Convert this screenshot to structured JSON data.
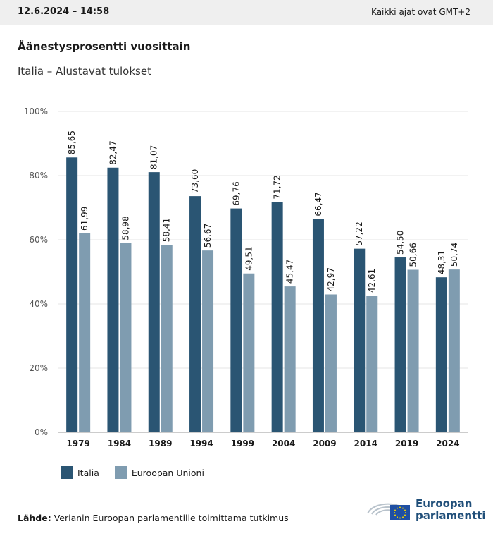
{
  "header": {
    "datetime": "12.6.2024 – 14:58",
    "timezone_note": "Kaikki ajat ovat GMT+2"
  },
  "title": "Äänestysprosentti vuosittain",
  "subtitle": "Italia – Alustavat tulokset",
  "colors": {
    "italia": "#2a5573",
    "eu": "#7f9cb0",
    "grid": "#e4e4e4"
  },
  "chart_data": {
    "type": "bar",
    "categories": [
      "1979",
      "1984",
      "1989",
      "1994",
      "1999",
      "2004",
      "2009",
      "2014",
      "2019",
      "2024"
    ],
    "series": [
      {
        "name": "Italia",
        "values": [
          85.65,
          82.47,
          81.07,
          73.6,
          69.76,
          71.72,
          66.47,
          57.22,
          54.5,
          48.31
        ],
        "labels": [
          "85,65",
          "82,47",
          "81,07",
          "73,60",
          "69,76",
          "71,72",
          "66,47",
          "57,22",
          "54,50",
          "48,31"
        ]
      },
      {
        "name": "Euroopan Unioni",
        "values": [
          61.99,
          58.98,
          58.41,
          56.67,
          49.51,
          45.47,
          42.97,
          42.61,
          50.66,
          50.74
        ],
        "labels": [
          "61,99",
          "58,98",
          "58,41",
          "56,67",
          "49,51",
          "45,47",
          "42,97",
          "42,61",
          "50,66",
          "50,74"
        ]
      }
    ],
    "ylim": [
      0,
      100
    ],
    "yticks": [
      "0%",
      "20%",
      "40%",
      "60%",
      "80%",
      "100%"
    ],
    "grid": true,
    "legend_position": "bottom-left"
  },
  "legend": {
    "series1": "Italia",
    "series2": "Euroopan Unioni"
  },
  "source": {
    "label": "Lähde:",
    "text": "Verianin Euroopan parlamentille toimittama tutkimus"
  },
  "logo": {
    "line1": "Euroopan",
    "line2": "parlamentti"
  }
}
